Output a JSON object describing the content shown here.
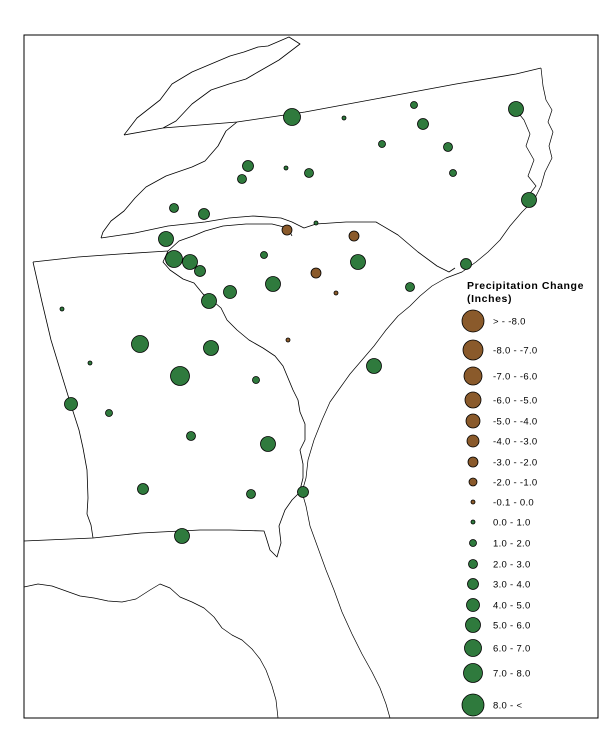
{
  "colors": {
    "decrease": "#8a5a2b",
    "increase": "#2f7a3d",
    "background": "#ffffff",
    "frame": "#000000"
  },
  "legend": {
    "title_line1": "Precipitation Change",
    "title_line2": "(Inches)",
    "classes": [
      {
        "label": "> - -8.0",
        "type": "decrease"
      },
      {
        "label": "-8.0 - -7.0",
        "type": "decrease"
      },
      {
        "label": "-7.0 - -6.0",
        "type": "decrease"
      },
      {
        "label": "-6.0 - -5.0",
        "type": "decrease"
      },
      {
        "label": "-5.0 - -4.0",
        "type": "decrease"
      },
      {
        "label": "-4.0 - -3.0",
        "type": "decrease"
      },
      {
        "label": "-3.0 - -2.0",
        "type": "decrease"
      },
      {
        "label": "-2.0 - -1.0",
        "type": "decrease"
      },
      {
        "label": "-0.1 - 0.0",
        "type": "decrease"
      },
      {
        "label": "0.0 - 1.0",
        "type": "increase"
      },
      {
        "label": "1.0 - 2.0",
        "type": "increase"
      },
      {
        "label": "2.0 - 3.0",
        "type": "increase"
      },
      {
        "label": "3.0 - 4.0",
        "type": "increase"
      },
      {
        "label": "4.0 - 5.0",
        "type": "increase"
      },
      {
        "label": "5.0 - 6.0",
        "type": "increase"
      },
      {
        "label": "6.0 - 7.0",
        "type": "increase"
      },
      {
        "label": "7.0 - 8.0",
        "type": "increase"
      },
      {
        "label": "8.0 - <",
        "type": "increase"
      }
    ]
  },
  "stations": [
    {
      "cls": 15
    },
    {
      "cls": 9
    },
    {
      "cls": 10
    },
    {
      "cls": 12
    },
    {
      "cls": 14
    },
    {
      "cls": 10
    },
    {
      "cls": 11
    },
    {
      "cls": 10
    },
    {
      "cls": 14
    },
    {
      "cls": 12
    },
    {
      "cls": 11
    },
    {
      "cls": 9
    },
    {
      "cls": 11
    },
    {
      "cls": 11
    },
    {
      "cls": 9
    },
    {
      "cls": 12
    },
    {
      "cls": 14
    },
    {
      "cls": 15
    },
    {
      "cls": 14
    },
    {
      "cls": 14
    },
    {
      "cls": 13
    },
    {
      "cls": 12
    },
    {
      "cls": 14
    },
    {
      "cls": 14
    },
    {
      "cls": 12
    },
    {
      "cls": 10
    },
    {
      "cls": 11
    },
    {
      "cls": 9
    },
    {
      "cls": 9
    },
    {
      "cls": 15
    },
    {
      "cls": 12
    },
    {
      "cls": 16
    },
    {
      "cls": 10
    },
    {
      "cls": 13
    },
    {
      "cls": 10
    },
    {
      "cls": 11
    },
    {
      "cls": 14
    },
    {
      "cls": 12
    },
    {
      "cls": 11
    },
    {
      "cls": 14
    },
    {
      "cls": 12
    },
    {
      "cls": 14
    },
    {
      "cls": 14
    },
    {
      "cls": 6
    },
    {
      "cls": 6
    },
    {
      "cls": 6
    },
    {
      "cls": 8
    },
    {
      "cls": 8
    }
  ]
}
